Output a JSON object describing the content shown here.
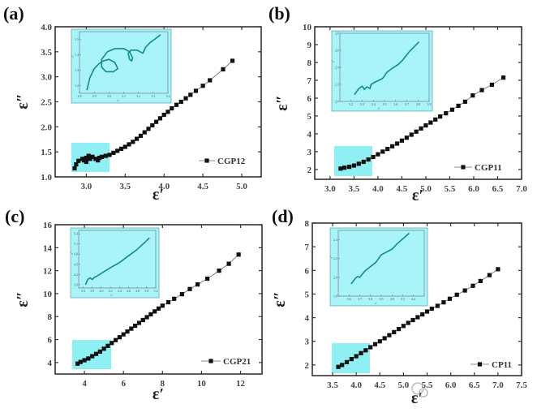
{
  "watermark": "材料分析与应用",
  "colors": {
    "marker": "#111111",
    "inset_bg": "#a8f4f8",
    "inset_line": "#138a8a",
    "highlight": "#8ff0f4"
  },
  "chart_data": [
    {
      "type": "scatter",
      "panel_label": "(a)",
      "xlabel": "ε′",
      "ylabel": "ε″",
      "xlim": [
        2.6,
        5.25
      ],
      "ylim": [
        1.0,
        4.0
      ],
      "xticks": [
        "3.0",
        "3.5",
        "4.0",
        "4.5",
        "5.0"
      ],
      "yticks": [
        "1.0",
        "1.5",
        "2.0",
        "2.5",
        "3.0",
        "3.5",
        "4.0"
      ],
      "legend": "top-right-of-bottom",
      "series": [
        {
          "name": "CGP12",
          "points": [
            [
              2.85,
              1.17
            ],
            [
              2.87,
              1.25
            ],
            [
              2.9,
              1.32
            ],
            [
              2.95,
              1.36
            ],
            [
              3.0,
              1.38
            ],
            [
              3.05,
              1.36
            ],
            [
              3.0,
              1.3
            ],
            [
              2.97,
              1.33
            ],
            [
              3.03,
              1.42
            ],
            [
              3.08,
              1.4
            ],
            [
              3.12,
              1.36
            ],
            [
              3.15,
              1.33
            ],
            [
              3.17,
              1.38
            ],
            [
              3.2,
              1.4
            ],
            [
              3.25,
              1.42
            ],
            [
              3.3,
              1.44
            ],
            [
              3.35,
              1.48
            ],
            [
              3.4,
              1.52
            ],
            [
              3.45,
              1.56
            ],
            [
              3.5,
              1.6
            ],
            [
              3.55,
              1.65
            ],
            [
              3.6,
              1.7
            ],
            [
              3.65,
              1.76
            ],
            [
              3.7,
              1.82
            ],
            [
              3.75,
              1.89
            ],
            [
              3.8,
              1.96
            ],
            [
              3.85,
              2.03
            ],
            [
              3.9,
              2.1
            ],
            [
              3.95,
              2.17
            ],
            [
              4.0,
              2.24
            ],
            [
              4.05,
              2.3
            ],
            [
              4.1,
              2.37
            ],
            [
              4.16,
              2.44
            ],
            [
              4.22,
              2.5
            ],
            [
              4.28,
              2.57
            ],
            [
              4.34,
              2.64
            ],
            [
              4.41,
              2.72
            ],
            [
              4.5,
              2.82
            ],
            [
              4.59,
              2.93
            ],
            [
              4.76,
              3.15
            ],
            [
              4.88,
              3.32
            ]
          ]
        }
      ],
      "inset": {
        "xlabel": "ε′",
        "ylabel": "ε″",
        "xlim": [
          2.8,
          3.4
        ],
        "ylim": [
          1.15,
          1.55
        ],
        "xticks": [
          "2.8",
          "2.9",
          "3.0",
          "3.1",
          "3.2",
          "3.3",
          "3.4"
        ],
        "yticks": [
          "1.2",
          "1.3",
          "1.4",
          "1.5"
        ],
        "points": [
          [
            2.85,
            1.17
          ],
          [
            2.87,
            1.25
          ],
          [
            2.9,
            1.31
          ],
          [
            2.93,
            1.34
          ],
          [
            2.96,
            1.36
          ],
          [
            3.0,
            1.37
          ],
          [
            3.04,
            1.35
          ],
          [
            3.06,
            1.31
          ],
          [
            3.03,
            1.29
          ],
          [
            2.98,
            1.29
          ],
          [
            2.95,
            1.32
          ],
          [
            2.95,
            1.37
          ],
          [
            2.99,
            1.42
          ],
          [
            3.04,
            1.44
          ],
          [
            3.1,
            1.44
          ],
          [
            3.14,
            1.42
          ],
          [
            3.16,
            1.38
          ],
          [
            3.155,
            1.36
          ],
          [
            3.14,
            1.37
          ],
          [
            3.13,
            1.41
          ],
          [
            3.15,
            1.43
          ],
          [
            3.19,
            1.43
          ],
          [
            3.23,
            1.41
          ],
          [
            3.25,
            1.45
          ],
          [
            3.28,
            1.48
          ],
          [
            3.31,
            1.5
          ],
          [
            3.35,
            1.53
          ]
        ]
      }
    },
    {
      "type": "scatter",
      "panel_label": "(b)",
      "xlabel": "ε′",
      "ylabel": "ε″",
      "xlim": [
        2.68,
        7.0
      ],
      "ylim": [
        1.45,
        10
      ],
      "xticks": [
        "3.0",
        "3.5",
        "4.0",
        "4.5",
        "5.0",
        "5.5",
        "6.0",
        "6.5",
        "7.0"
      ],
      "yticks": [
        "2",
        "3",
        "4",
        "5",
        "6",
        "7",
        "8",
        "9",
        "10"
      ],
      "series": [
        {
          "name": "CGP11",
          "points": [
            [
              3.22,
              2.05
            ],
            [
              3.3,
              2.1
            ],
            [
              3.4,
              2.15
            ],
            [
              3.5,
              2.22
            ],
            [
              3.6,
              2.32
            ],
            [
              3.7,
              2.43
            ],
            [
              3.8,
              2.56
            ],
            [
              3.9,
              2.7
            ],
            [
              4.0,
              2.85
            ],
            [
              4.1,
              3.0
            ],
            [
              4.2,
              3.15
            ],
            [
              4.3,
              3.3
            ],
            [
              4.4,
              3.45
            ],
            [
              4.5,
              3.62
            ],
            [
              4.6,
              3.78
            ],
            [
              4.7,
              3.95
            ],
            [
              4.8,
              4.12
            ],
            [
              4.9,
              4.3
            ],
            [
              5.0,
              4.47
            ],
            [
              5.1,
              4.63
            ],
            [
              5.2,
              4.8
            ],
            [
              5.3,
              4.97
            ],
            [
              5.42,
              5.15
            ],
            [
              5.55,
              5.35
            ],
            [
              5.68,
              5.57
            ],
            [
              5.82,
              5.8
            ],
            [
              5.98,
              6.15
            ],
            [
              6.17,
              6.45
            ],
            [
              6.38,
              6.75
            ],
            [
              6.62,
              7.15
            ]
          ]
        }
      ],
      "inset": {
        "xlabel": "ε′",
        "ylabel": "ε″",
        "xlim": [
          3.1,
          3.9
        ],
        "ylim": [
          2.0,
          2.8
        ],
        "xticks": [
          "3.2",
          "3.3",
          "3.4",
          "3.5",
          "3.6",
          "3.7",
          "3.8",
          "3.9"
        ],
        "yticks": [
          "2.0",
          "2.2",
          "2.4",
          "2.6",
          "2.8"
        ],
        "points": [
          [
            3.23,
            2.08
          ],
          [
            3.27,
            2.15
          ],
          [
            3.3,
            2.18
          ],
          [
            3.32,
            2.14
          ],
          [
            3.34,
            2.17
          ],
          [
            3.36,
            2.16
          ],
          [
            3.37,
            2.15
          ],
          [
            3.38,
            2.2
          ],
          [
            3.42,
            2.23
          ],
          [
            3.47,
            2.26
          ],
          [
            3.49,
            2.28
          ],
          [
            3.52,
            2.34
          ],
          [
            3.56,
            2.38
          ],
          [
            3.62,
            2.43
          ],
          [
            3.66,
            2.48
          ],
          [
            3.72,
            2.58
          ],
          [
            3.81,
            2.7
          ]
        ]
      }
    },
    {
      "type": "scatter",
      "panel_label": "(c)",
      "xlabel": "ε′",
      "ylabel": "ε″",
      "xlim": [
        2.5,
        13.1
      ],
      "ylim": [
        3.0,
        16
      ],
      "xticks": [
        "4",
        "6",
        "8",
        "10",
        "12"
      ],
      "yticks": [
        "4",
        "6",
        "8",
        "10",
        "12",
        "14",
        "16"
      ],
      "series": [
        {
          "name": "CGP21",
          "points": [
            [
              3.65,
              3.9
            ],
            [
              3.8,
              4.05
            ],
            [
              4.0,
              4.2
            ],
            [
              4.2,
              4.35
            ],
            [
              4.4,
              4.55
            ],
            [
              4.6,
              4.75
            ],
            [
              4.8,
              4.95
            ],
            [
              5.0,
              5.2
            ],
            [
              5.2,
              5.45
            ],
            [
              5.4,
              5.7
            ],
            [
              5.6,
              5.95
            ],
            [
              5.8,
              6.2
            ],
            [
              6.0,
              6.45
            ],
            [
              6.2,
              6.7
            ],
            [
              6.4,
              6.95
            ],
            [
              6.6,
              7.2
            ],
            [
              6.8,
              7.45
            ],
            [
              7.0,
              7.7
            ],
            [
              7.2,
              7.95
            ],
            [
              7.4,
              8.2
            ],
            [
              7.6,
              8.45
            ],
            [
              7.8,
              8.7
            ],
            [
              8.0,
              8.95
            ],
            [
              8.3,
              9.25
            ],
            [
              8.6,
              9.55
            ],
            [
              9.0,
              9.95
            ],
            [
              9.4,
              10.4
            ],
            [
              9.8,
              10.8
            ],
            [
              10.3,
              11.3
            ],
            [
              10.9,
              12.0
            ],
            [
              11.4,
              12.6
            ],
            [
              11.9,
              13.4
            ]
          ]
        }
      ],
      "inset": {
        "xlabel": "ε′",
        "ylabel": "ε″",
        "xlim": [
          3.5,
          5.2
        ],
        "ylim": [
          3.8,
          5.5
        ],
        "xticks": [
          "3.6",
          "3.8",
          "4.0",
          "4.2",
          "4.4",
          "4.6",
          "4.8",
          "5.0",
          "5.2"
        ],
        "yticks": [
          "3.9",
          "4.2",
          "4.5",
          "4.8",
          "5.1",
          "5.4"
        ],
        "points": [
          [
            3.65,
            3.9
          ],
          [
            3.7,
            4.05
          ],
          [
            3.75,
            4.1
          ],
          [
            3.8,
            4.05
          ],
          [
            3.85,
            4.12
          ],
          [
            3.9,
            4.15
          ],
          [
            4.2,
            4.4
          ],
          [
            4.4,
            4.55
          ],
          [
            4.6,
            4.75
          ],
          [
            4.8,
            4.95
          ],
          [
            5.0,
            5.2
          ],
          [
            5.06,
            5.28
          ]
        ]
      }
    },
    {
      "type": "scatter",
      "panel_label": "(d)",
      "xlabel": "ε′",
      "ylabel": "ε″",
      "xlim": [
        3.07,
        7.5
      ],
      "ylim": [
        1.55,
        8
      ],
      "xticks": [
        "3.5",
        "4.0",
        "4.5",
        "5.0",
        "5.5",
        "6.0",
        "6.5",
        "7.0",
        "7.5"
      ],
      "yticks": [
        "2",
        "3",
        "4",
        "5",
        "6",
        "7",
        "8"
      ],
      "series": [
        {
          "name": "CP11",
          "points": [
            [
              3.62,
              1.92
            ],
            [
              3.7,
              2.0
            ],
            [
              3.8,
              2.12
            ],
            [
              3.9,
              2.25
            ],
            [
              4.0,
              2.37
            ],
            [
              4.1,
              2.5
            ],
            [
              4.2,
              2.62
            ],
            [
              4.3,
              2.75
            ],
            [
              4.4,
              2.88
            ],
            [
              4.5,
              3.0
            ],
            [
              4.6,
              3.13
            ],
            [
              4.7,
              3.26
            ],
            [
              4.8,
              3.39
            ],
            [
              4.9,
              3.52
            ],
            [
              5.0,
              3.65
            ],
            [
              5.1,
              3.78
            ],
            [
              5.2,
              3.9
            ],
            [
              5.3,
              4.02
            ],
            [
              5.4,
              4.14
            ],
            [
              5.5,
              4.26
            ],
            [
              5.6,
              4.38
            ],
            [
              5.72,
              4.5
            ],
            [
              5.85,
              4.65
            ],
            [
              5.98,
              4.8
            ],
            [
              6.13,
              4.97
            ],
            [
              6.3,
              5.15
            ],
            [
              6.47,
              5.35
            ],
            [
              6.63,
              5.55
            ],
            [
              6.82,
              5.8
            ],
            [
              7.0,
              6.05
            ]
          ]
        }
      ],
      "inset": {
        "xlabel": "ε′",
        "ylabel": "ε″",
        "xlim": [
          3.5,
          4.3
        ],
        "ylim": [
          1.8,
          2.5
        ],
        "xticks": [
          "3.6",
          "3.7",
          "3.8",
          "3.9",
          "4.0",
          "4.1",
          "4.2"
        ],
        "yticks": [
          "1.8",
          "2.0",
          "2.2",
          "2.4"
        ],
        "points": [
          [
            3.62,
            1.93
          ],
          [
            3.66,
            1.99
          ],
          [
            3.68,
            2.01
          ],
          [
            3.7,
            2.0
          ],
          [
            3.75,
            2.07
          ],
          [
            3.85,
            2.16
          ],
          [
            3.9,
            2.24
          ],
          [
            4.0,
            2.3
          ],
          [
            4.05,
            2.36
          ],
          [
            4.12,
            2.43
          ],
          [
            4.16,
            2.47
          ]
        ]
      }
    }
  ]
}
